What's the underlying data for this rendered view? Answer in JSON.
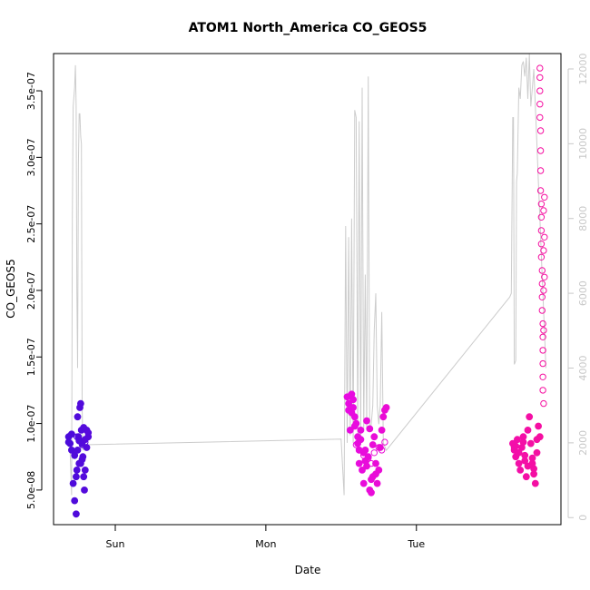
{
  "chart_data": {
    "type": "scatter",
    "title": "ATOM1 North_America CO_GEOS5",
    "xlabel": "Date",
    "ylabel": "CO_GEOS5",
    "y_ticks": [
      "5.0e-08",
      "1.0e-07",
      "1.5e-07",
      "2.0e-07",
      "2.5e-07",
      "3.0e-07",
      "3.5e-07"
    ],
    "y_tick_values": [
      5e-08,
      1e-07,
      1.5e-07,
      2e-07,
      2.5e-07,
      3e-07,
      3.5e-07
    ],
    "x_ticks": [
      "Sun",
      "Mon",
      "Tue"
    ],
    "x_tick_values": [
      1.0,
      2.0,
      3.0
    ],
    "right_ticks": [
      "0",
      "2000",
      "4000",
      "6000",
      "8000",
      "10000",
      "12000"
    ],
    "right_tick_values": [
      0,
      2000,
      4000,
      6000,
      8000,
      10000,
      12000
    ],
    "xlim": [
      0.59,
      3.96
    ],
    "ylim": [
      2.4e-08,
      3.78e-07
    ],
    "right_ylim": [
      -188,
      12412
    ],
    "grid": false,
    "colors": {
      "axis": "#000000",
      "right_axis": "#c8c8c8",
      "altitude_line": "#cccccc",
      "series_start": "#4b0bdb",
      "series_mid": "#e60be6",
      "series_end": "#f50fa0"
    },
    "series": [
      {
        "name": "",
        "x": [
          0.69,
          0.7,
          0.71,
          0.72,
          0.73,
          0.74,
          0.745,
          0.75,
          0.755,
          0.76,
          0.765,
          0.77,
          0.775,
          0.78,
          0.785,
          0.79,
          0.795,
          0.8,
          0.81,
          0.82,
          0.69,
          0.71,
          0.73,
          0.75,
          0.77,
          0.79,
          0.81,
          0.74,
          0.76,
          0.78,
          0.8,
          0.82
        ],
        "y": [
          9e-08,
          8.5e-08,
          8e-08,
          5.5e-08,
          4.2e-08,
          3.2e-08,
          6.5e-08,
          1.05e-07,
          9e-08,
          7e-08,
          1.12e-07,
          1.15e-07,
          9.5e-08,
          8.5e-08,
          7.5e-08,
          6e-08,
          5e-08,
          8.8e-08,
          9.5e-08,
          9e-08,
          8.6e-08,
          9.2e-08,
          7.6e-08,
          8e-08,
          7e-08,
          9.7e-08,
          8.2e-08,
          6e-08,
          8.7e-08,
          7.3e-08,
          6.5e-08,
          9.3e-08
        ],
        "mode": "filled"
      },
      {
        "name": "",
        "x": [
          2.54,
          2.55,
          2.56,
          2.57,
          2.58,
          2.59,
          2.6,
          2.61,
          2.62,
          2.63,
          2.64,
          2.65,
          2.66,
          2.67,
          2.68,
          2.69,
          2.7,
          2.71,
          2.72,
          2.73,
          2.74,
          2.75,
          2.76,
          2.77,
          2.78,
          2.79,
          2.8,
          2.55,
          2.57,
          2.59,
          2.61,
          2.63,
          2.65,
          2.67,
          2.69,
          2.71,
          2.73,
          2.58,
          2.62,
          2.66,
          2.7
        ],
        "y": [
          1.2e-07,
          1.1e-07,
          9.5e-08,
          1.22e-07,
          1.18e-07,
          1.05e-07,
          1e-07,
          8.5e-08,
          7e-08,
          9.5e-08,
          6.5e-08,
          5.5e-08,
          8e-08,
          1.02e-07,
          7.5e-08,
          5e-08,
          4.8e-08,
          6e-08,
          9e-08,
          7e-08,
          5.5e-08,
          6.5e-08,
          8.2e-08,
          9.5e-08,
          1.05e-07,
          1.1e-07,
          1.12e-07,
          1.15e-07,
          1.08e-07,
          9.8e-08,
          9e-08,
          8.8e-08,
          7.8e-08,
          6.8e-08,
          9.6e-08,
          8.4e-08,
          6.2e-08,
          1.12e-07,
          8e-08,
          7.2e-08,
          5.8e-08
        ],
        "mode": "filled"
      },
      {
        "name": "",
        "x": [
          3.64,
          3.65,
          3.66,
          3.67,
          3.68,
          3.69,
          3.7,
          3.71,
          3.72,
          3.73,
          3.74,
          3.75,
          3.76,
          3.77,
          3.78,
          3.79,
          3.8,
          3.81,
          3.82,
          3.65,
          3.68,
          3.71,
          3.74,
          3.77,
          3.8,
          3.66,
          3.72,
          3.78
        ],
        "y": [
          8.5e-08,
          8e-08,
          7.5e-08,
          8.8e-08,
          7e-08,
          6.5e-08,
          8.2e-08,
          9e-08,
          7.2e-08,
          6e-08,
          9.5e-08,
          1.05e-07,
          8.5e-08,
          7e-08,
          6.2e-08,
          5.5e-08,
          8.8e-08,
          9.8e-08,
          9e-08,
          8.2e-08,
          7.8e-08,
          8.6e-08,
          6.8e-08,
          7.4e-08,
          7.8e-08,
          8.3e-08,
          7.6e-08,
          6.6e-08
        ],
        "mode": "filled"
      },
      {
        "name": "",
        "x": [
          3.82,
          3.82,
          3.82,
          3.82,
          3.82,
          3.825,
          3.825,
          3.825,
          3.825,
          3.83,
          3.83,
          3.83,
          3.83,
          3.83,
          3.835,
          3.835,
          3.835,
          3.835,
          3.84,
          3.84,
          3.84,
          3.84,
          3.84,
          3.84,
          3.845,
          3.845,
          3.845,
          3.845,
          3.845,
          3.85,
          3.85,
          3.85
        ],
        "y": [
          3.67e-07,
          3.6e-07,
          3.5e-07,
          3.4e-07,
          3.3e-07,
          3.2e-07,
          3.05e-07,
          2.9e-07,
          2.75e-07,
          2.65e-07,
          2.55e-07,
          2.45e-07,
          2.35e-07,
          2.25e-07,
          2.15e-07,
          2.05e-07,
          1.95e-07,
          1.85e-07,
          1.75e-07,
          1.65e-07,
          1.55e-07,
          1.45e-07,
          1.35e-07,
          1.25e-07,
          1.15e-07,
          2.6e-07,
          2.3e-07,
          2e-07,
          1.7e-07,
          2.7e-07,
          2.4e-07,
          2.1e-07
        ],
        "mode": "hollow"
      },
      {
        "name": "",
        "x": [
          0.745,
          0.76,
          0.78,
          0.8,
          2.6,
          2.62,
          2.65,
          2.68,
          2.7,
          2.72,
          2.75,
          2.77,
          2.79
        ],
        "y": [
          9e-08,
          8.8e-08,
          8.4e-08,
          8.6e-08,
          8.4e-08,
          8e-08,
          7.6e-08,
          7.4e-08,
          7e-08,
          7.8e-08,
          8.2e-08,
          8e-08,
          8.6e-08
        ],
        "mode": "hollow"
      }
    ],
    "altitude_series": {
      "name": "",
      "x": [
        0.7,
        0.71,
        0.715,
        0.72,
        0.73,
        0.735,
        0.74,
        0.745,
        0.75,
        0.755,
        0.76,
        0.765,
        0.77,
        0.775,
        0.78,
        0.785,
        0.79,
        0.8,
        0.81,
        0.82,
        0.83,
        2.5,
        2.52,
        2.53,
        2.54,
        2.55,
        2.56,
        2.57,
        2.58,
        2.59,
        2.6,
        2.61,
        2.62,
        2.63,
        2.64,
        2.65,
        2.66,
        2.67,
        2.68,
        2.69,
        2.7,
        2.71,
        2.72,
        2.73,
        2.74,
        2.75,
        2.76,
        2.77,
        2.78,
        2.8,
        3.62,
        3.63,
        3.64,
        3.645,
        3.65,
        3.66,
        3.665,
        3.67,
        3.68,
        3.69,
        3.7,
        3.71,
        3.72,
        3.73,
        3.74,
        3.75,
        3.76,
        3.77,
        3.78,
        3.79,
        3.8,
        3.81,
        3.82,
        3.83,
        3.84,
        3.85,
        3.86
      ],
      "y": [
        1800,
        600,
        8000,
        11000,
        11500,
        12100,
        11000,
        6000,
        4000,
        9500,
        10800,
        10800,
        10200,
        10000,
        3000,
        1800,
        1900,
        1900,
        1900,
        1950,
        1950,
        2100,
        600,
        7800,
        2000,
        7500,
        2200,
        8000,
        2000,
        10900,
        10700,
        2200,
        10600,
        2100,
        11500,
        2300,
        6500,
        2400,
        11800,
        2300,
        2500,
        3000,
        5000,
        6000,
        3000,
        2500,
        3000,
        5500,
        2000,
        1800,
        5900,
        6000,
        10700,
        10700,
        4100,
        4200,
        9000,
        9200,
        11500,
        11200,
        12100,
        12200,
        11800,
        12300,
        11200,
        12400,
        11000,
        11500,
        12000,
        11000,
        10000,
        9000,
        8000,
        7000,
        6000,
        5000,
        4000
      ]
    },
    "legend": "none"
  }
}
